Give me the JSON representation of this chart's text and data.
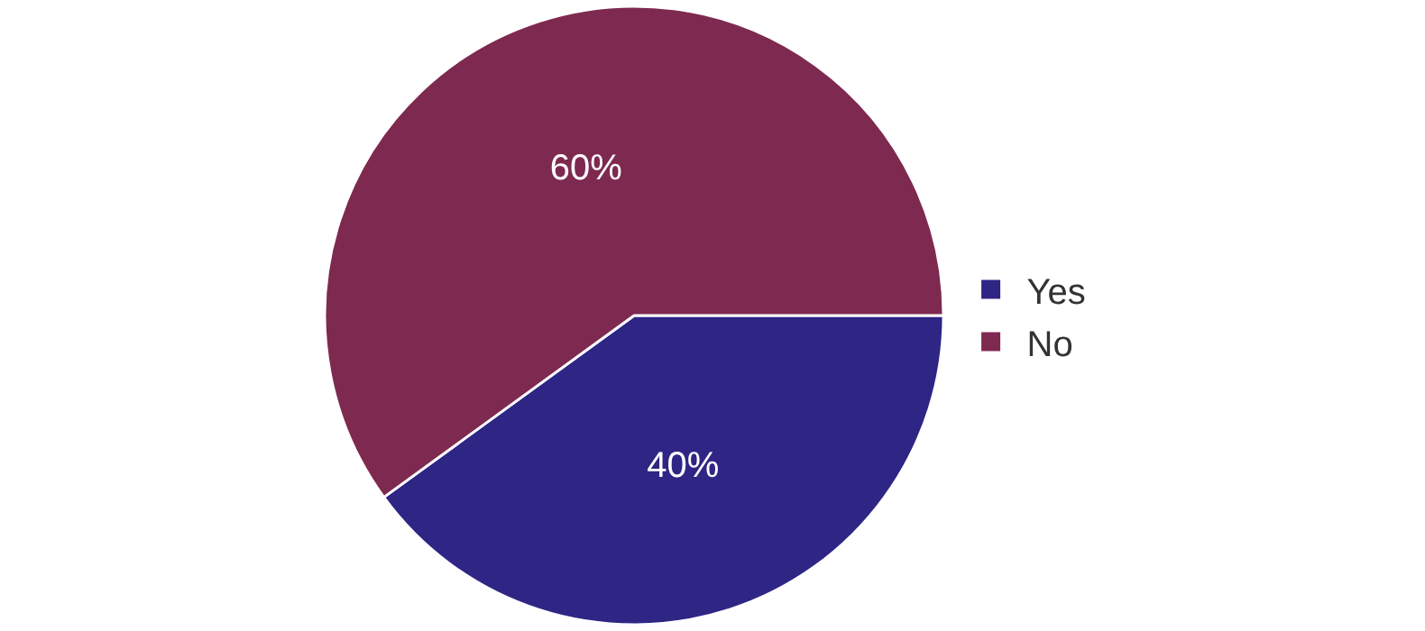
{
  "chart_data": {
    "type": "pie",
    "categories": [
      "Yes",
      "No"
    ],
    "values": [
      40,
      60
    ],
    "colors": [
      "#2e2585",
      "#7e2950"
    ],
    "value_labels": [
      "40%",
      "60%"
    ],
    "legend": "right"
  }
}
